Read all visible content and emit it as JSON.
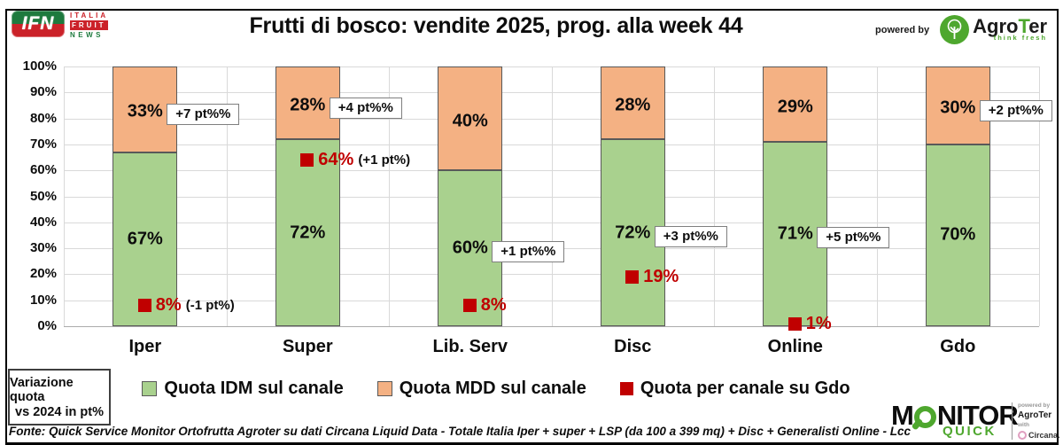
{
  "header": {
    "title": "Frutti di bosco: vendite 2025, prog. alla week 44",
    "powered_by": "powered by",
    "agroter_prefix": "Agro",
    "agroter_t": "T",
    "agroter_suffix": "er",
    "agroter_tagline": "think fresh",
    "ifn": {
      "acronym": "IFN",
      "line1": "ITALIA",
      "line2": "FRUIT",
      "line3": "NEWS"
    }
  },
  "chart_data": {
    "type": "bar",
    "subtype": "stacked-100-percent",
    "categories": [
      "Iper",
      "Super",
      "Lib. Serv",
      "Disc",
      "Online",
      "Gdo"
    ],
    "series": [
      {
        "name": "Quota IDM sul canale",
        "color": "#A9D18E",
        "values": [
          67,
          72,
          60,
          72,
          71,
          70
        ],
        "labels": [
          "67%",
          "72%",
          "60%",
          "72%",
          "71%",
          "70%"
        ]
      },
      {
        "name": "Quota MDD sul canale",
        "color": "#F4B183",
        "values": [
          33,
          28,
          40,
          28,
          29,
          30
        ],
        "labels": [
          "33%",
          "28%",
          "40%",
          "28%",
          "29%",
          "30%"
        ]
      }
    ],
    "markers": {
      "name": "Quota per canale su Gdo",
      "color": "#C00000",
      "values": [
        8,
        64,
        8,
        19,
        1,
        null
      ],
      "labels": [
        "8%",
        "64%",
        "8%",
        "19%",
        "1%",
        null
      ],
      "notes": [
        "(-1 pt%)",
        "(+1 pt%)",
        null,
        null,
        null,
        null
      ]
    },
    "annotations": [
      {
        "text": "+7 pt%%",
        "anchor": "mdd"
      },
      {
        "text": "+4 pt%%",
        "anchor": "mdd"
      },
      {
        "text": "+1 pt%%",
        "anchor": "idm"
      },
      {
        "text": "+3 pt%%",
        "anchor": "idm"
      },
      {
        "text": "+5 pt%%",
        "anchor": "idm"
      },
      {
        "text": "+2 pt%%",
        "anchor": "mdd"
      }
    ],
    "y_axis": {
      "min": 0,
      "max": 100,
      "step": 10,
      "tick_suffix": "%"
    },
    "grid": {
      "horizontal": true,
      "vertical": true,
      "color": "#D9D9D9",
      "axis_color": "#ABABAB"
    },
    "legend_position": "bottom"
  },
  "note_box": {
    "line1": "Variazione quota",
    "line2": "vs 2024 in pt%"
  },
  "legend": [
    {
      "label": "Quota IDM sul canale",
      "color": "#A9D18E"
    },
    {
      "label": "Quota MDD sul canale",
      "color": "#F4B183"
    },
    {
      "label": "Quota per canale su Gdo",
      "color": "#C00000"
    }
  ],
  "footer": {
    "source": "Fonte: Quick Service Monitor Ortofrutta Agroter su dati Circana Liquid Data - Totale Italia Iper + super + LSP (da 100 a 399 mq) + Disc + Generalisti Online - Lcc"
  },
  "monitor_logo": {
    "wordmark_prefix": "M",
    "wordmark_suffix": "NITOR",
    "sub": "QUICK",
    "powered_by": "powered by",
    "partner1": "AgroTer",
    "connector": "with",
    "partner2": "Circana."
  }
}
